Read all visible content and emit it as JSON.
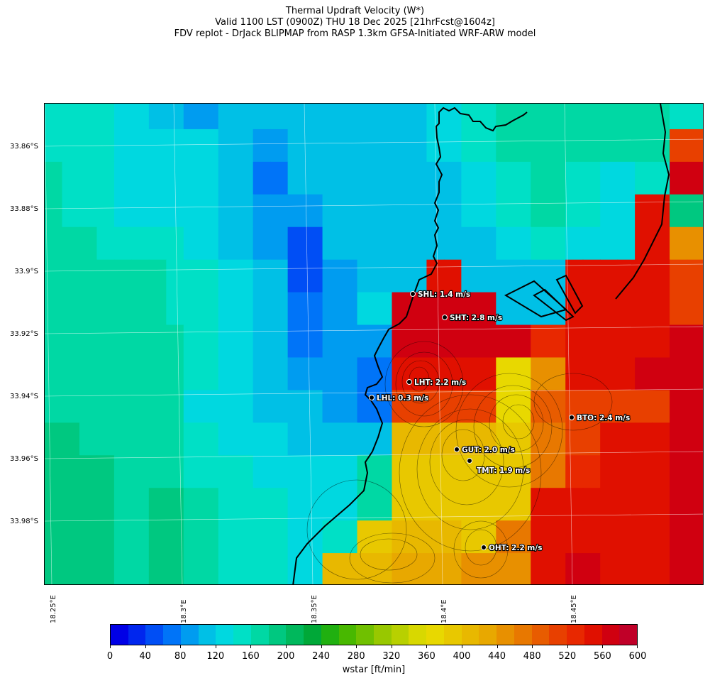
{
  "header": {
    "line1": "Thermal Updraft Velocity (W*)",
    "line2": "Valid 1100 LST (0900Z) THU 18 Dec 2025 [21hrFcst@1604z]",
    "line3": "FDV replot - DrJack BLIPMAP from RASP 1.3km GFSA-Initiated WRF-ARW model"
  },
  "axes": {
    "lat_labels": [
      "33.86°S",
      "33.88°S",
      "33.9°S",
      "33.92°S",
      "33.94°S",
      "33.96°S",
      "33.98°S"
    ],
    "lon_labels": [
      "18.25°E",
      "18.3°E",
      "18.35°E",
      "18.4°E",
      "18.45°E"
    ]
  },
  "grid_values": [
    [
      140,
      140,
      140,
      140,
      120,
      120,
      100,
      100,
      80,
      80,
      100,
      100,
      100,
      100,
      100,
      100,
      100,
      100,
      100,
      100,
      100,
      100,
      120,
      120,
      140,
      140,
      160,
      160,
      160,
      160,
      160,
      160,
      160,
      160,
      160,
      160,
      140,
      140
    ],
    [
      140,
      140,
      140,
      140,
      120,
      120,
      120,
      120,
      120,
      120,
      100,
      100,
      80,
      80,
      100,
      100,
      100,
      100,
      100,
      100,
      100,
      100,
      120,
      120,
      140,
      140,
      160,
      160,
      160,
      160,
      160,
      160,
      160,
      160,
      160,
      160,
      500,
      500
    ],
    [
      160,
      140,
      140,
      140,
      120,
      120,
      120,
      120,
      120,
      120,
      100,
      100,
      60,
      60,
      100,
      100,
      100,
      100,
      100,
      100,
      100,
      100,
      100,
      100,
      120,
      120,
      140,
      140,
      160,
      160,
      140,
      140,
      120,
      120,
      140,
      140,
      560,
      560
    ],
    [
      160,
      140,
      140,
      140,
      120,
      120,
      120,
      120,
      120,
      120,
      100,
      100,
      80,
      80,
      80,
      80,
      100,
      100,
      100,
      100,
      100,
      100,
      100,
      100,
      120,
      120,
      140,
      140,
      160,
      160,
      140,
      140,
      120,
      120,
      540,
      540,
      180,
      180
    ],
    [
      160,
      160,
      160,
      140,
      140,
      140,
      140,
      140,
      120,
      120,
      100,
      100,
      80,
      80,
      40,
      40,
      100,
      100,
      100,
      100,
      100,
      100,
      100,
      100,
      100,
      100,
      120,
      120,
      140,
      140,
      120,
      120,
      120,
      120,
      540,
      540,
      440,
      440
    ],
    [
      160,
      160,
      160,
      160,
      160,
      160,
      160,
      140,
      140,
      140,
      120,
      120,
      100,
      100,
      40,
      40,
      80,
      80,
      100,
      100,
      100,
      100,
      540,
      540,
      100,
      100,
      100,
      100,
      100,
      100,
      540,
      540,
      540,
      540,
      540,
      540,
      500,
      500
    ],
    [
      160,
      160,
      160,
      160,
      160,
      160,
      160,
      140,
      140,
      140,
      120,
      120,
      100,
      100,
      60,
      60,
      80,
      80,
      120,
      120,
      560,
      560,
      560,
      560,
      560,
      560,
      100,
      100,
      100,
      100,
      540,
      540,
      540,
      540,
      540,
      540,
      500,
      500
    ],
    [
      160,
      160,
      160,
      160,
      160,
      160,
      160,
      160,
      140,
      140,
      120,
      120,
      100,
      100,
      60,
      60,
      80,
      80,
      80,
      80,
      560,
      560,
      560,
      560,
      560,
      560,
      560,
      560,
      520,
      520,
      540,
      540,
      540,
      540,
      540,
      540,
      560,
      560
    ],
    [
      160,
      160,
      160,
      160,
      160,
      160,
      160,
      160,
      140,
      140,
      120,
      120,
      100,
      100,
      80,
      80,
      80,
      80,
      60,
      60,
      540,
      540,
      540,
      540,
      540,
      540,
      360,
      360,
      440,
      440,
      540,
      540,
      540,
      540,
      560,
      560,
      560,
      560
    ],
    [
      160,
      160,
      160,
      160,
      160,
      160,
      160,
      160,
      120,
      120,
      120,
      120,
      100,
      100,
      100,
      100,
      80,
      80,
      60,
      60,
      500,
      500,
      500,
      500,
      500,
      500,
      360,
      360,
      480,
      480,
      500,
      500,
      500,
      500,
      500,
      500,
      560,
      560
    ],
    [
      180,
      180,
      160,
      160,
      160,
      160,
      160,
      160,
      140,
      140,
      120,
      120,
      120,
      120,
      100,
      100,
      100,
      100,
      100,
      100,
      400,
      400,
      400,
      400,
      400,
      400,
      380,
      380,
      460,
      460,
      500,
      500,
      540,
      540,
      540,
      540,
      560,
      560
    ],
    [
      180,
      180,
      180,
      180,
      160,
      160,
      160,
      160,
      140,
      140,
      140,
      140,
      120,
      120,
      120,
      120,
      120,
      120,
      160,
      160,
      380,
      380,
      380,
      380,
      380,
      380,
      380,
      380,
      460,
      460,
      520,
      520,
      540,
      540,
      540,
      540,
      560,
      560
    ],
    [
      180,
      180,
      180,
      180,
      160,
      160,
      180,
      180,
      160,
      160,
      140,
      140,
      140,
      140,
      120,
      120,
      120,
      120,
      160,
      160,
      380,
      380,
      380,
      380,
      380,
      380,
      380,
      380,
      540,
      540,
      540,
      540,
      540,
      540,
      540,
      540,
      560,
      560
    ],
    [
      180,
      180,
      180,
      180,
      160,
      160,
      180,
      180,
      160,
      160,
      140,
      140,
      140,
      140,
      120,
      120,
      140,
      140,
      380,
      380,
      400,
      400,
      400,
      400,
      380,
      380,
      460,
      460,
      540,
      540,
      540,
      540,
      540,
      540,
      540,
      540,
      560,
      560
    ],
    [
      180,
      180,
      180,
      180,
      160,
      160,
      180,
      180,
      160,
      160,
      140,
      140,
      140,
      140,
      120,
      120,
      400,
      400,
      400,
      400,
      420,
      420,
      420,
      420,
      440,
      440,
      440,
      440,
      540,
      540,
      560,
      560,
      540,
      540,
      540,
      540,
      560,
      560
    ]
  ],
  "sites": [
    {
      "name": "SHL: 1.4 m/s"
    },
    {
      "name": "SHT: 2.8 m/s"
    },
    {
      "name": "LHT: 2.2 m/s"
    },
    {
      "name": "LHL: 0.3 m/s"
    },
    {
      "name": "BTO: 2.4 m/s"
    },
    {
      "name": "GUT: 2.0 m/s"
    },
    {
      "name": "TMT: 1.9 m/s"
    },
    {
      "name": "OHT: 2.2 m/s"
    }
  ],
  "colorbar": {
    "min": 0,
    "max": 600,
    "step": 20,
    "colors": [
      "#0000e6",
      "#0026ee",
      "#004ef5",
      "#0074f8",
      "#009cf0",
      "#00c0e6",
      "#00d8e0",
      "#00e0c6",
      "#00d8a4",
      "#00c880",
      "#00b85c",
      "#00a838",
      "#20b010",
      "#48b800",
      "#70c000",
      "#98c800",
      "#b8d000",
      "#d8d800",
      "#e8d800",
      "#e8c800",
      "#e8b800",
      "#e8a800",
      "#e89000",
      "#e87800",
      "#e85c00",
      "#e84000",
      "#e82800",
      "#e01000",
      "#d00010",
      "#c00028"
    ],
    "ticks": [
      "0",
      "40",
      "80",
      "120",
      "160",
      "200",
      "240",
      "280",
      "320",
      "360",
      "400",
      "440",
      "480",
      "520",
      "560",
      "600"
    ],
    "label": "wstar [ft/min]"
  }
}
